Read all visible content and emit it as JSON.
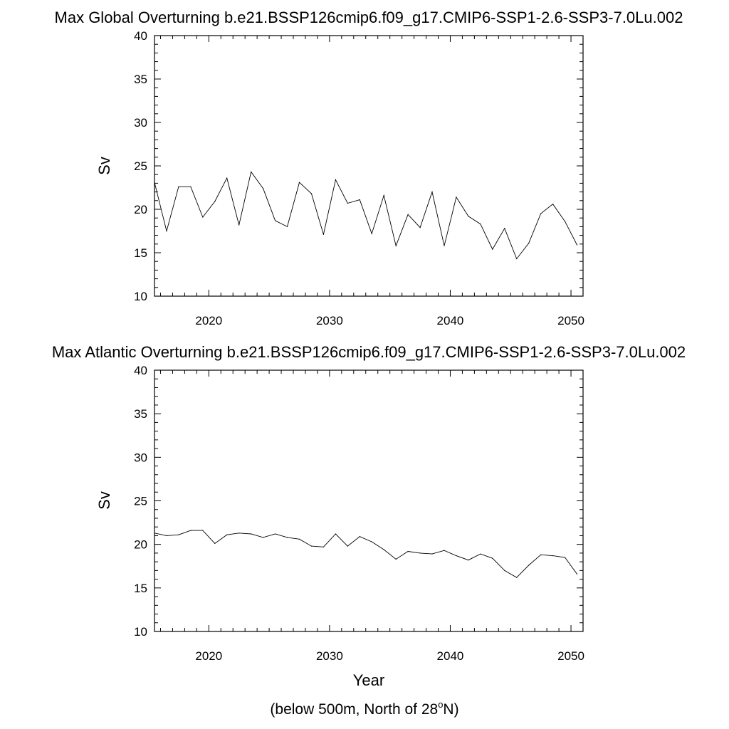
{
  "chart_data": [
    {
      "type": "line",
      "title": "Max Global Overturning b.e21.BSSP126cmip6.f09_g17.CMIP6-SSP1-2.6-SSP3-7.0Lu.002",
      "xlabel": "",
      "ylabel": "Sv",
      "xlim": [
        2015.5,
        2051
      ],
      "ylim": [
        10,
        40
      ],
      "x_ticks": [
        2020,
        2030,
        2040,
        2050
      ],
      "y_ticks": [
        10,
        15,
        20,
        25,
        30,
        35,
        40
      ],
      "grid": false,
      "series": [
        {
          "x": [
            2015.5,
            2016.5,
            2017.5,
            2018.5,
            2019.5,
            2020.5,
            2021.5,
            2022.5,
            2023.5,
            2024.5,
            2025.5,
            2026.5,
            2027.5,
            2028.5,
            2029.5,
            2030.5,
            2031.5,
            2032.5,
            2033.5,
            2034.5,
            2035.5,
            2036.5,
            2037.5,
            2038.5,
            2039.5,
            2040.5,
            2041.5,
            2042.5,
            2043.5,
            2044.5,
            2045.5,
            2046.5,
            2047.5,
            2048.5,
            2049.5,
            2050.5
          ],
          "values": [
            23.1,
            17.5,
            22.6,
            22.6,
            19.1,
            20.9,
            23.6,
            18.2,
            24.3,
            22.4,
            18.7,
            18.0,
            23.1,
            21.8,
            17.1,
            23.4,
            20.7,
            21.1,
            17.2,
            21.6,
            15.8,
            19.4,
            17.9,
            22.0,
            15.8,
            21.4,
            19.2,
            18.3,
            15.4,
            17.8,
            14.3,
            16.1,
            19.5,
            20.6,
            18.6,
            15.9
          ]
        }
      ]
    },
    {
      "type": "line",
      "title": "Max Atlantic Overturning b.e21.BSSP126cmip6.f09_g17.CMIP6-SSP1-2.6-SSP3-7.0Lu.002",
      "xlabel": "Year",
      "ylabel": "Sv",
      "xlim": [
        2015.5,
        2051
      ],
      "ylim": [
        10,
        40
      ],
      "x_ticks": [
        2020,
        2030,
        2040,
        2050
      ],
      "y_ticks": [
        10,
        15,
        20,
        25,
        30,
        35,
        40
      ],
      "grid": false,
      "series": [
        {
          "x": [
            2015.5,
            2016.5,
            2017.5,
            2018.5,
            2019.5,
            2020.5,
            2021.5,
            2022.5,
            2023.5,
            2024.5,
            2025.5,
            2026.5,
            2027.5,
            2028.5,
            2029.5,
            2030.5,
            2031.5,
            2032.5,
            2033.5,
            2034.5,
            2035.5,
            2036.5,
            2037.5,
            2038.5,
            2039.5,
            2040.5,
            2041.5,
            2042.5,
            2043.5,
            2044.5,
            2045.5,
            2046.5,
            2047.5,
            2048.5,
            2049.5,
            2050.5
          ],
          "values": [
            21.3,
            21.0,
            21.1,
            21.6,
            21.6,
            20.1,
            21.1,
            21.3,
            21.2,
            20.8,
            21.2,
            20.8,
            20.6,
            19.8,
            19.7,
            21.2,
            19.8,
            20.9,
            20.3,
            19.4,
            18.3,
            19.2,
            19.0,
            18.9,
            19.3,
            18.7,
            18.2,
            18.9,
            18.4,
            17.0,
            16.2,
            17.6,
            18.8,
            18.7,
            18.5,
            16.6
          ]
        }
      ]
    }
  ],
  "footnote": {
    "prefix": "(below 500m, North of 28",
    "superscript": "o",
    "suffix": "N)"
  }
}
